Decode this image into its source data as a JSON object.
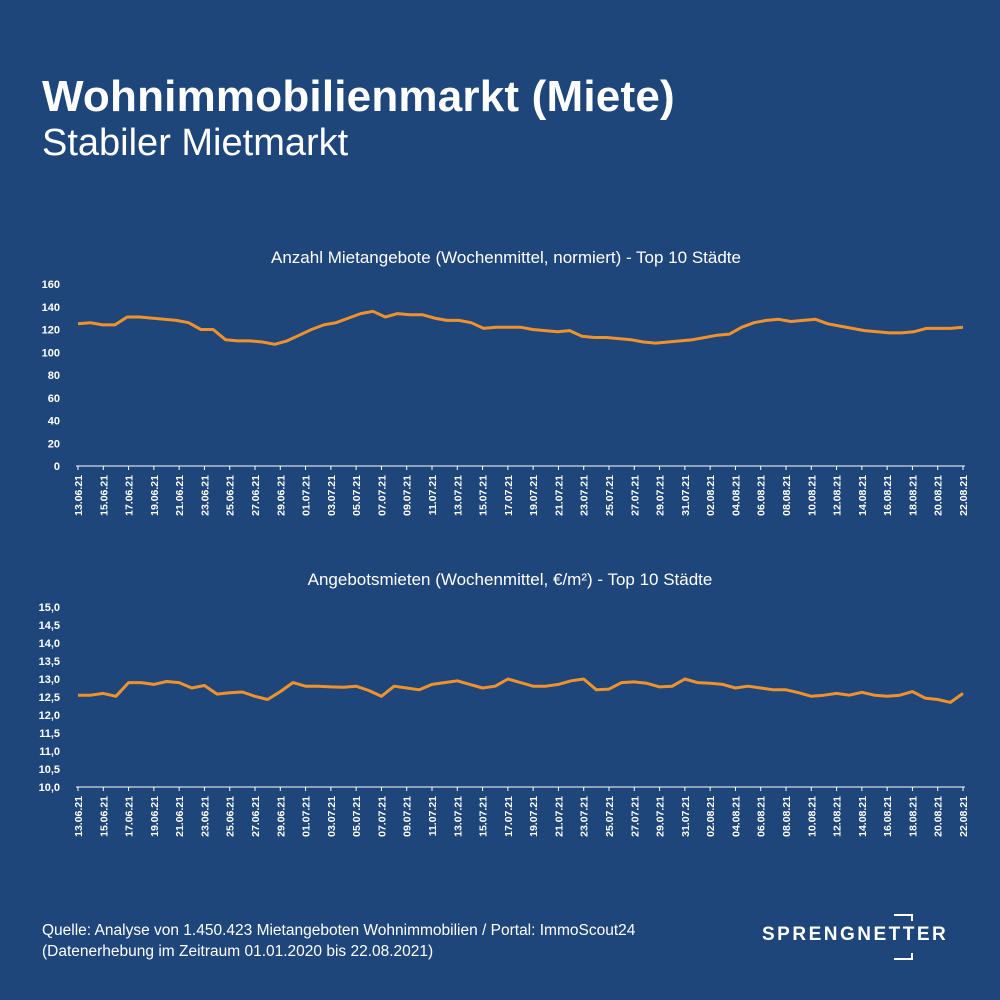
{
  "header": {
    "title": "Wohnimmobilienmarkt (Miete)",
    "subtitle": "Stabiler Mietmarkt"
  },
  "footer": {
    "source_line1": "Quelle: Analyse von 1.450.423 Mietangeboten Wohnimmobilien / Portal: ImmoScout24",
    "source_line2": "(Datenerhebung im Zeitraum 01.01.2020 bis  22.08.2021)"
  },
  "brand": {
    "name": "SPRENGNETTER"
  },
  "colors": {
    "background": "#1f467a",
    "line": "#f0922b",
    "text": "#ffffff"
  },
  "chart_data": [
    {
      "type": "line",
      "title": "Anzahl Mietangebote (Wochenmittel, normiert) - Top 10 Städte",
      "xlabel": "",
      "ylabel": "",
      "ylim": [
        0,
        160
      ],
      "yticks": [
        "0",
        "20",
        "40",
        "60",
        "80",
        "100",
        "120",
        "140",
        "160"
      ],
      "ytick_values": [
        0,
        20,
        40,
        60,
        80,
        100,
        120,
        140,
        160
      ],
      "xticks": [
        "13.06.21",
        "15.06.21",
        "17.06.21",
        "19.06.21",
        "21.06.21",
        "23.06.21",
        "25.06.21",
        "27.06.21",
        "29.06.21",
        "01.07.21",
        "03.07.21",
        "05.07.21",
        "07.07.21",
        "09.07.21",
        "11.07.21",
        "13.07.21",
        "15.07.21",
        "17.07.21",
        "19.07.21",
        "21.07.21",
        "23.07.21",
        "25.07.21",
        "27.07.21",
        "29.07.21",
        "31.07.21",
        "02.08.21",
        "04.08.21",
        "06.08.21",
        "08.08.21",
        "10.08.21",
        "12.08.21",
        "14.08.21",
        "16.08.21",
        "18.08.21",
        "20.08.21",
        "22.08.21"
      ],
      "grid": false,
      "series": [
        {
          "values": [
            125,
            126,
            124,
            124,
            131,
            131,
            130,
            129,
            128,
            126,
            120,
            120,
            111,
            110,
            110,
            109,
            107,
            110,
            115,
            120,
            124,
            126,
            130,
            134,
            136,
            131,
            134,
            133,
            133,
            130,
            128,
            128,
            126,
            121,
            122,
            122,
            122,
            120,
            119,
            118,
            119,
            114,
            113,
            113,
            112,
            111,
            109,
            108,
            109,
            110,
            111,
            113,
            115,
            116,
            122,
            126,
            128,
            129,
            127,
            128,
            129,
            125,
            123,
            121,
            119,
            118,
            117,
            117,
            118,
            121,
            121,
            121,
            122
          ]
        }
      ]
    },
    {
      "type": "line",
      "title": "Angebotsmieten (Wochenmittel, €/m²) - Top 10 Städte",
      "xlabel": "",
      "ylabel": "",
      "ylim": [
        10.0,
        15.0
      ],
      "yticks": [
        "10,0",
        "10,5",
        "11,0",
        "11,5",
        "12,0",
        "12,5",
        "13,0",
        "13,5",
        "14,0",
        "14,5",
        "15,0"
      ],
      "ytick_values": [
        10.0,
        10.5,
        11.0,
        11.5,
        12.0,
        12.5,
        13.0,
        13.5,
        14.0,
        14.5,
        15.0
      ],
      "xticks": [
        "13.06.21",
        "15.06.21",
        "17.06.21",
        "19.06.21",
        "21.06.21",
        "23.06.21",
        "25.06.21",
        "27.06.21",
        "29.06.21",
        "01.07.21",
        "03.07.21",
        "05.07.21",
        "07.07.21",
        "09.07.21",
        "11.07.21",
        "13.07.21",
        "15.07.21",
        "17.07.21",
        "19.07.21",
        "21.07.21",
        "23.07.21",
        "25.07.21",
        "27.07.21",
        "29.07.21",
        "31.07.21",
        "02.08.21",
        "04.08.21",
        "06.08.21",
        "08.08.21",
        "10.08.21",
        "12.08.21",
        "14.08.21",
        "16.08.21",
        "18.08.21",
        "20.08.21",
        "22.08.21"
      ],
      "grid": false,
      "series": [
        {
          "values": [
            12.55,
            12.55,
            12.6,
            12.52,
            12.9,
            12.9,
            12.85,
            12.93,
            12.9,
            12.75,
            12.82,
            12.58,
            12.62,
            12.64,
            12.52,
            12.43,
            12.65,
            12.9,
            12.8,
            12.8,
            12.78,
            12.77,
            12.8,
            12.68,
            12.52,
            12.8,
            12.75,
            12.7,
            12.85,
            12.9,
            12.95,
            12.85,
            12.75,
            12.8,
            13.0,
            12.9,
            12.8,
            12.8,
            12.85,
            12.95,
            13.0,
            12.7,
            12.72,
            12.9,
            12.92,
            12.88,
            12.78,
            12.8,
            13.0,
            12.9,
            12.88,
            12.85,
            12.75,
            12.8,
            12.75,
            12.7,
            12.7,
            12.62,
            12.52,
            12.55,
            12.6,
            12.55,
            12.63,
            12.55,
            12.52,
            12.55,
            12.65,
            12.47,
            12.43,
            12.35,
            12.6
          ]
        }
      ]
    }
  ]
}
